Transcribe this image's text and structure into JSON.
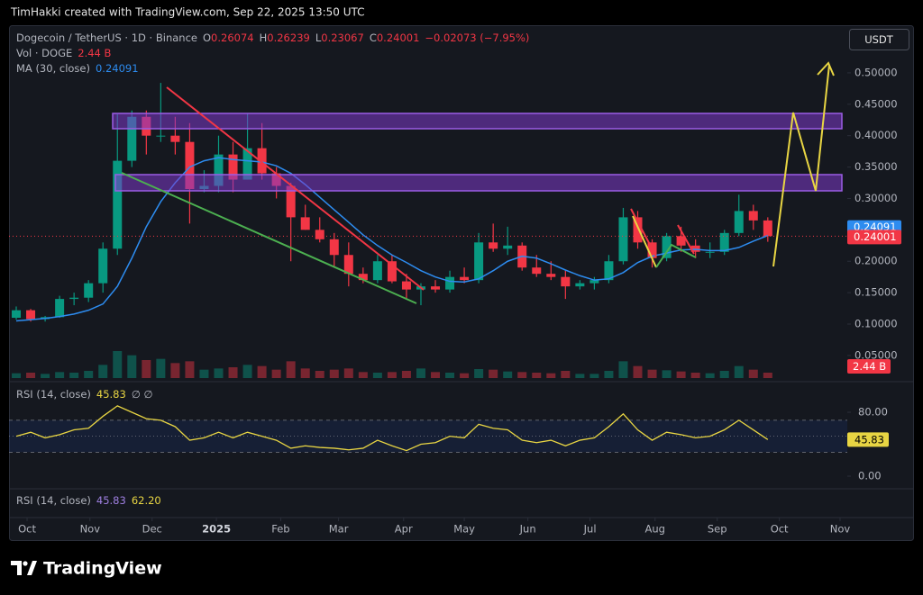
{
  "header": {
    "attribution": "TimHakki created with TradingView.com, Sep 22, 2025 13:50 UTC",
    "currency": "USDT",
    "logo": "TradingView"
  },
  "chart_data": {
    "type": "candlestick",
    "title": "Dogecoin / TetherUS · 1D · Binance",
    "ohlc_legend": [
      {
        "label": "O",
        "value": "0.26074"
      },
      {
        "label": "H",
        "value": "0.26239"
      },
      {
        "label": "L",
        "value": "0.23067"
      },
      {
        "label": "C",
        "value": "0.24001"
      }
    ],
    "change": "−0.02073 (−7.95%)",
    "up_color": "#089981",
    "down_color": "#f23645",
    "open": [
      0.11,
      0.122,
      0.108,
      0.111,
      0.14,
      0.142,
      0.165,
      0.22,
      0.36,
      0.43,
      0.4,
      0.4,
      0.39,
      0.315,
      0.32,
      0.37,
      0.33,
      0.38,
      0.34,
      0.32,
      0.27,
      0.25,
      0.235,
      0.21,
      0.18,
      0.17,
      0.2,
      0.168,
      0.155,
      0.16,
      0.155,
      0.175,
      0.17,
      0.23,
      0.22,
      0.225,
      0.19,
      0.18,
      0.175,
      0.16,
      0.165,
      0.17,
      0.2,
      0.27,
      0.23,
      0.205,
      0.24,
      0.225,
      0.215,
      0.215,
      0.245,
      0.28,
      0.265
    ],
    "high": [
      0.128,
      0.124,
      0.113,
      0.145,
      0.15,
      0.17,
      0.23,
      0.434,
      0.44,
      0.44,
      0.484,
      0.43,
      0.42,
      0.345,
      0.4,
      0.39,
      0.435,
      0.42,
      0.35,
      0.325,
      0.29,
      0.27,
      0.245,
      0.23,
      0.19,
      0.21,
      0.21,
      0.18,
      0.165,
      0.17,
      0.185,
      0.19,
      0.245,
      0.26,
      0.255,
      0.23,
      0.21,
      0.2,
      0.185,
      0.17,
      0.175,
      0.21,
      0.285,
      0.28,
      0.235,
      0.245,
      0.255,
      0.235,
      0.23,
      0.25,
      0.306,
      0.29,
      0.27
    ],
    "low": [
      0.107,
      0.104,
      0.104,
      0.11,
      0.13,
      0.135,
      0.15,
      0.21,
      0.35,
      0.37,
      0.39,
      0.37,
      0.26,
      0.31,
      0.31,
      0.31,
      0.33,
      0.33,
      0.3,
      0.2,
      0.25,
      0.23,
      0.19,
      0.16,
      0.165,
      0.165,
      0.165,
      0.14,
      0.13,
      0.15,
      0.15,
      0.165,
      0.165,
      0.215,
      0.21,
      0.185,
      0.175,
      0.17,
      0.14,
      0.155,
      0.155,
      0.165,
      0.195,
      0.22,
      0.19,
      0.2,
      0.215,
      0.205,
      0.205,
      0.21,
      0.24,
      0.25,
      0.231
    ],
    "close": [
      0.122,
      0.108,
      0.111,
      0.14,
      0.142,
      0.165,
      0.22,
      0.36,
      0.43,
      0.4,
      0.4,
      0.39,
      0.315,
      0.32,
      0.37,
      0.33,
      0.38,
      0.34,
      0.32,
      0.27,
      0.25,
      0.235,
      0.21,
      0.18,
      0.17,
      0.2,
      0.168,
      0.155,
      0.16,
      0.155,
      0.175,
      0.17,
      0.23,
      0.22,
      0.225,
      0.19,
      0.18,
      0.175,
      0.16,
      0.165,
      0.17,
      0.2,
      0.27,
      0.23,
      0.205,
      0.24,
      0.225,
      0.215,
      0.215,
      0.245,
      0.28,
      0.265,
      0.24
    ],
    "last_price_label": "0.24001",
    "xlim": [
      -0.5,
      57.5
    ],
    "xticks": [
      {
        "value": 0.75,
        "label": "Oct"
      },
      {
        "value": 5.1,
        "label": "Nov"
      },
      {
        "value": 9.4,
        "label": "Dec"
      },
      {
        "value": 13.85,
        "label": "2025"
      },
      {
        "value": 18.3,
        "label": "Feb"
      },
      {
        "value": 22.3,
        "label": "Mar"
      },
      {
        "value": 26.8,
        "label": "Apr"
      },
      {
        "value": 31.0,
        "label": "May"
      },
      {
        "value": 35.4,
        "label": "Jun"
      },
      {
        "value": 39.7,
        "label": "Jul"
      },
      {
        "value": 44.2,
        "label": "Aug"
      },
      {
        "value": 48.5,
        "label": "Sep"
      },
      {
        "value": 52.8,
        "label": "Oct"
      },
      {
        "value": 57.0,
        "label": "Nov"
      }
    ],
    "ylim": [
      0.014,
      0.573
    ],
    "yticks": [
      {
        "value": 0.05,
        "label": "0.05000"
      },
      {
        "value": 0.1,
        "label": "0.10000"
      },
      {
        "value": 0.15,
        "label": "0.15000"
      },
      {
        "value": 0.2,
        "label": "0.20000"
      },
      {
        "value": 0.25,
        "label": "0.25000"
      },
      {
        "value": 0.3,
        "label": "0.30000"
      },
      {
        "value": 0.35,
        "label": "0.35000"
      },
      {
        "value": 0.4,
        "label": "0.40000"
      },
      {
        "value": 0.45,
        "label": "0.45000"
      },
      {
        "value": 0.5,
        "label": "0.50000"
      }
    ],
    "grid": false,
    "ma": {
      "name": "MA (30, close)",
      "last_label": "0.24091",
      "color": "#2d8cf0",
      "values": [
        0.105,
        0.107,
        0.109,
        0.112,
        0.116,
        0.122,
        0.132,
        0.16,
        0.205,
        0.255,
        0.295,
        0.325,
        0.35,
        0.36,
        0.365,
        0.362,
        0.36,
        0.358,
        0.352,
        0.34,
        0.322,
        0.302,
        0.282,
        0.262,
        0.242,
        0.225,
        0.21,
        0.198,
        0.185,
        0.175,
        0.168,
        0.167,
        0.172,
        0.185,
        0.2,
        0.208,
        0.205,
        0.196,
        0.186,
        0.177,
        0.17,
        0.172,
        0.182,
        0.198,
        0.208,
        0.213,
        0.218,
        0.219,
        0.217,
        0.217,
        0.222,
        0.232,
        0.241
      ]
    },
    "volume": {
      "name": "Vol · DOGE",
      "last_label": "2.44 B",
      "ylim": [
        0,
        60
      ],
      "values": [
        8,
        9,
        7,
        10,
        9,
        12,
        22,
        45,
        38,
        30,
        32,
        25,
        28,
        14,
        16,
        18,
        22,
        20,
        14,
        28,
        16,
        12,
        14,
        16,
        10,
        9,
        10,
        12,
        16,
        10,
        9,
        8,
        15,
        14,
        11,
        10,
        9,
        8,
        12,
        7,
        7,
        12,
        28,
        20,
        14,
        13,
        11,
        9,
        8,
        12,
        20,
        14,
        9
      ]
    },
    "rsi": {
      "name": "RSI (14, close)",
      "last_label": "45.83",
      "symbols": "∅ ∅",
      "color": "#e8d543",
      "ylim": [
        0,
        100
      ],
      "yticks": [
        {
          "value": 80,
          "label": "80.00"
        },
        {
          "value": 0,
          "label": "0.00"
        }
      ],
      "bands": [
        70,
        50,
        30
      ],
      "values": [
        50,
        55,
        48,
        52,
        58,
        60,
        75,
        88,
        80,
        72,
        70,
        62,
        45,
        48,
        55,
        48,
        55,
        50,
        45,
        35,
        38,
        36,
        35,
        33,
        35,
        45,
        38,
        32,
        40,
        42,
        50,
        48,
        65,
        60,
        58,
        45,
        42,
        45,
        38,
        45,
        48,
        62,
        78,
        58,
        45,
        55,
        52,
        48,
        50,
        58,
        70,
        58,
        45.83
      ]
    },
    "rsi2": {
      "name": "RSI (14, close)",
      "labels": [
        "45.83",
        "62.20"
      ]
    }
  }
}
